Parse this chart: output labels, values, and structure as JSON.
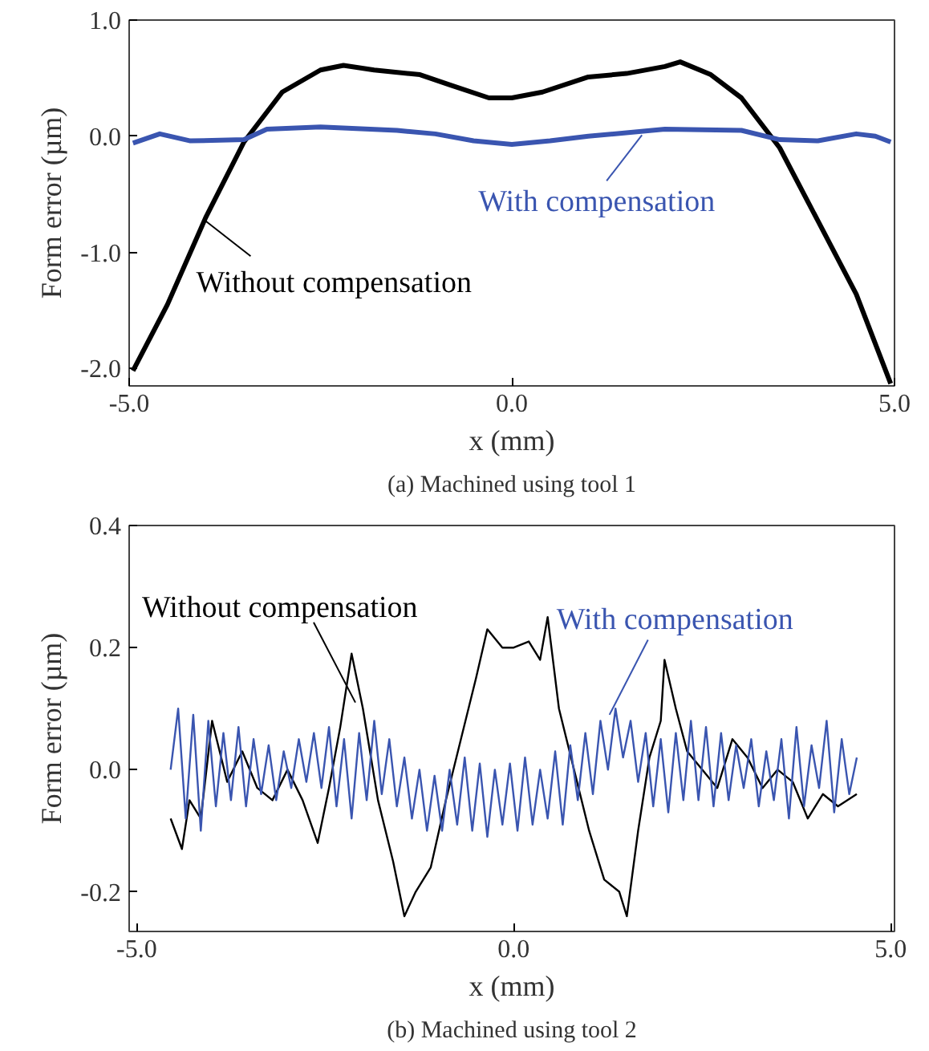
{
  "chart_data": [
    {
      "type": "line",
      "xlabel": "x (mm)",
      "ylabel": "Form error (µm)",
      "xlim": [
        -5,
        5
      ],
      "ylim": [
        -2.15,
        1.0
      ],
      "xticks": [
        {
          "value": -5,
          "label": "-5.0"
        },
        {
          "value": 0,
          "label": "0.0"
        },
        {
          "value": 5,
          "label": "5.0"
        }
      ],
      "yticks": [
        {
          "value": -2,
          "label": "-2.0"
        },
        {
          "value": -1,
          "label": "-1.0"
        },
        {
          "value": 0,
          "label": "0.0"
        },
        {
          "value": 1,
          "label": "1.0"
        }
      ],
      "grid": false,
      "series": [
        {
          "color": "#000000",
          "x": [
            -4.95,
            -4.5,
            -4.0,
            -3.5,
            -3.0,
            -2.5,
            -2.2,
            -1.8,
            -1.2,
            -0.8,
            -0.3,
            0.0,
            0.4,
            1.0,
            1.5,
            2.0,
            2.2,
            2.6,
            3.0,
            3.5,
            4.0,
            4.5,
            4.95
          ],
          "values": [
            -2.02,
            -1.45,
            -0.7,
            -0.05,
            0.38,
            0.57,
            0.61,
            0.57,
            0.53,
            0.44,
            0.33,
            0.33,
            0.38,
            0.51,
            0.54,
            0.6,
            0.64,
            0.53,
            0.33,
            -0.1,
            -0.73,
            -1.36,
            -2.13
          ]
        },
        {
          "color": "#3a55b0",
          "x": [
            -4.95,
            -4.6,
            -4.2,
            -3.5,
            -3.2,
            -2.5,
            -1.5,
            -1.0,
            -0.5,
            0.0,
            0.5,
            1.0,
            2.0,
            3.0,
            3.5,
            4.0,
            4.5,
            4.75,
            4.95
          ],
          "values": [
            -0.06,
            0.02,
            -0.04,
            -0.03,
            0.06,
            0.08,
            0.05,
            0.02,
            -0.04,
            -0.07,
            -0.04,
            0.0,
            0.06,
            0.05,
            -0.03,
            -0.04,
            0.02,
            0.0,
            -0.05
          ]
        }
      ],
      "annotations": [
        {
          "text": "Without compensation",
          "x": -4.0,
          "y": -0.73
        },
        {
          "text": "With compensation",
          "x": 1.7,
          "y": 0.01
        },
        "(a) Machined using tool 1"
      ]
    },
    {
      "type": "line",
      "xlabel": "x (mm)",
      "ylabel": "Form error (µm)",
      "xlim": [
        -5.1,
        5.05
      ],
      "ylim": [
        -0.265,
        0.4
      ],
      "xticks": [
        {
          "value": -5,
          "label": "-5.0"
        },
        {
          "value": 0,
          "label": "0.0"
        },
        {
          "value": 5,
          "label": "5.0"
        }
      ],
      "yticks": [
        {
          "value": -0.2,
          "label": "-0.2"
        },
        {
          "value": 0,
          "label": "0.0"
        },
        {
          "value": 0.2,
          "label": "0.2"
        },
        {
          "value": 0.4,
          "label": "0.4"
        }
      ],
      "grid": false,
      "series": [
        {
          "color": "#000000",
          "x": [
            -4.55,
            -4.4,
            -4.3,
            -4.15,
            -4.0,
            -3.8,
            -3.6,
            -3.4,
            -3.2,
            -3.0,
            -2.8,
            -2.6,
            -2.45,
            -2.3,
            -2.15,
            -2.0,
            -1.8,
            -1.6,
            -1.45,
            -1.3,
            -1.1,
            -0.9,
            -0.7,
            -0.5,
            -0.35,
            -0.15,
            0.0,
            0.2,
            0.35,
            0.45,
            0.6,
            0.8,
            1.0,
            1.2,
            1.4,
            1.5,
            1.65,
            1.8,
            1.95,
            2.0,
            2.15,
            2.3,
            2.5,
            2.7,
            2.9,
            3.1,
            3.3,
            3.5,
            3.7,
            3.9,
            4.1,
            4.3,
            4.55
          ],
          "values": [
            -0.08,
            -0.13,
            -0.05,
            -0.08,
            0.08,
            -0.02,
            0.03,
            -0.03,
            -0.05,
            0.0,
            -0.05,
            -0.12,
            -0.03,
            0.07,
            0.19,
            0.1,
            -0.05,
            -0.15,
            -0.24,
            -0.2,
            -0.16,
            -0.05,
            0.05,
            0.15,
            0.23,
            0.2,
            0.2,
            0.21,
            0.18,
            0.25,
            0.1,
            0.0,
            -0.1,
            -0.18,
            -0.2,
            -0.24,
            -0.1,
            0.02,
            0.08,
            0.18,
            0.1,
            0.03,
            0.0,
            -0.03,
            0.05,
            0.02,
            -0.03,
            0.0,
            -0.02,
            -0.08,
            -0.04,
            -0.06,
            -0.04
          ]
        },
        {
          "color": "#3a55b0",
          "x": [
            -4.55,
            -4.45,
            -4.35,
            -4.25,
            -4.15,
            -4.05,
            -3.95,
            -3.85,
            -3.75,
            -3.65,
            -3.55,
            -3.45,
            -3.35,
            -3.25,
            -3.15,
            -3.05,
            -2.95,
            -2.85,
            -2.75,
            -2.65,
            -2.55,
            -2.45,
            -2.35,
            -2.25,
            -2.15,
            -2.05,
            -1.95,
            -1.85,
            -1.75,
            -1.65,
            -1.55,
            -1.45,
            -1.35,
            -1.25,
            -1.15,
            -1.05,
            -0.95,
            -0.85,
            -0.75,
            -0.65,
            -0.55,
            -0.45,
            -0.35,
            -0.25,
            -0.15,
            -0.05,
            0.05,
            0.15,
            0.25,
            0.35,
            0.45,
            0.55,
            0.65,
            0.75,
            0.85,
            0.95,
            1.05,
            1.15,
            1.25,
            1.35,
            1.45,
            1.55,
            1.65,
            1.75,
            1.85,
            1.95,
            2.05,
            2.15,
            2.25,
            2.35,
            2.45,
            2.55,
            2.65,
            2.75,
            2.85,
            2.95,
            3.05,
            3.15,
            3.25,
            3.35,
            3.45,
            3.55,
            3.65,
            3.75,
            3.85,
            3.95,
            4.05,
            4.15,
            4.25,
            4.35,
            4.45,
            4.55
          ],
          "values": [
            0.0,
            0.1,
            -0.08,
            0.09,
            -0.1,
            0.08,
            -0.06,
            0.06,
            -0.05,
            0.07,
            -0.06,
            0.05,
            -0.04,
            0.04,
            -0.05,
            0.03,
            -0.03,
            0.05,
            -0.02,
            0.06,
            -0.03,
            0.07,
            -0.06,
            0.05,
            -0.08,
            0.06,
            -0.05,
            0.08,
            -0.04,
            0.05,
            -0.06,
            0.02,
            -0.08,
            0.0,
            -0.1,
            -0.01,
            -0.1,
            0.0,
            -0.09,
            0.02,
            -0.1,
            0.01,
            -0.11,
            0.0,
            -0.09,
            0.01,
            -0.1,
            0.02,
            -0.09,
            0.0,
            -0.08,
            0.03,
            -0.09,
            0.04,
            -0.05,
            0.06,
            -0.04,
            0.08,
            0.0,
            0.1,
            0.02,
            0.08,
            -0.02,
            0.06,
            -0.06,
            0.05,
            -0.07,
            0.06,
            -0.05,
            0.08,
            -0.05,
            0.07,
            -0.06,
            0.06,
            -0.05,
            0.04,
            -0.03,
            0.05,
            -0.06,
            0.03,
            -0.05,
            0.05,
            -0.08,
            0.07,
            -0.06,
            0.04,
            -0.03,
            0.08,
            -0.07,
            0.05,
            -0.04,
            0.02
          ]
        }
      ],
      "annotations": [
        {
          "text": "Without compensation",
          "x": -2.1,
          "y": 0.11
        },
        {
          "text": "With compensation",
          "x": 1.27,
          "y": 0.09
        },
        "(b) Machined using tool 2"
      ]
    }
  ]
}
